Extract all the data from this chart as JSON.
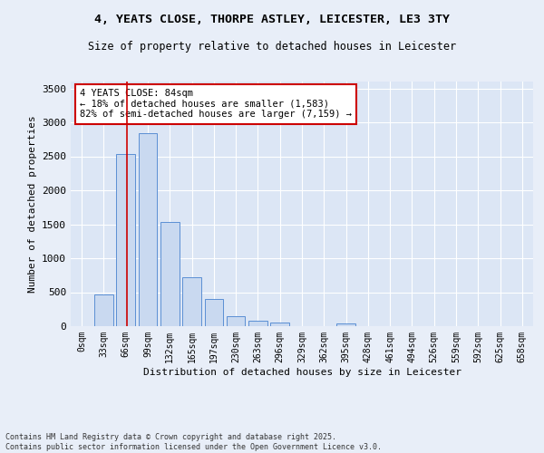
{
  "title_line1": "4, YEATS CLOSE, THORPE ASTLEY, LEICESTER, LE3 3TY",
  "title_line2": "Size of property relative to detached houses in Leicester",
  "xlabel": "Distribution of detached houses by size in Leicester",
  "ylabel": "Number of detached properties",
  "bar_labels": [
    "0sqm",
    "33sqm",
    "66sqm",
    "99sqm",
    "132sqm",
    "165sqm",
    "197sqm",
    "230sqm",
    "263sqm",
    "296sqm",
    "329sqm",
    "362sqm",
    "395sqm",
    "428sqm",
    "461sqm",
    "494sqm",
    "526sqm",
    "559sqm",
    "592sqm",
    "625sqm",
    "658sqm"
  ],
  "bar_values": [
    0,
    470,
    2530,
    2840,
    1530,
    720,
    400,
    150,
    85,
    50,
    0,
    0,
    45,
    0,
    0,
    0,
    0,
    0,
    0,
    0,
    0
  ],
  "bar_color": "#c9d9f0",
  "bar_edge_color": "#5b8fd4",
  "property_sqm": 84,
  "annotation_text": "4 YEATS CLOSE: 84sqm\n← 18% of detached houses are smaller (1,583)\n82% of semi-detached houses are larger (7,159) →",
  "vline_color": "#cc0000",
  "annotation_box_color": "#cc0000",
  "ylim": [
    0,
    3600
  ],
  "yticks": [
    0,
    500,
    1000,
    1500,
    2000,
    2500,
    3000,
    3500
  ],
  "fig_bg_color": "#e8eef8",
  "plot_bg_color": "#dce6f5",
  "grid_color": "#ffffff",
  "footer_line1": "Contains HM Land Registry data © Crown copyright and database right 2025.",
  "footer_line2": "Contains public sector information licensed under the Open Government Licence v3.0."
}
